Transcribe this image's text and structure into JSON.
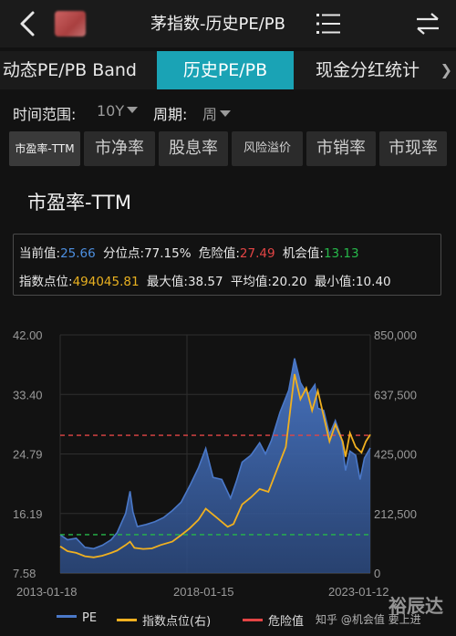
{
  "header": {
    "title": "茅指数-历史PE/PB"
  },
  "tabs": [
    {
      "label": "动态PE/PB Band",
      "active": false
    },
    {
      "label": "历史PE/PB",
      "active": true
    },
    {
      "label": "现金分红统计",
      "active": false
    }
  ],
  "filters": {
    "range_label": "时间范围:",
    "range_value": "10Y",
    "period_label": "周期:",
    "period_value": "周"
  },
  "metric_tabs": [
    {
      "label": "市盈率-TTM",
      "active": true
    },
    {
      "label": "市净率",
      "active": false
    },
    {
      "label": "股息率",
      "active": false
    },
    {
      "label": "风险溢价",
      "active": false
    },
    {
      "label": "市销率",
      "active": false
    },
    {
      "label": "市现率",
      "active": false
    }
  ],
  "chart_title": "市盈率-TTM",
  "stats": {
    "current_label": "当前值:",
    "current_value": "25.66",
    "percentile_label": "分位点:",
    "percentile_value": "77.15%",
    "danger_label": "危险值:",
    "danger_value": "27.49",
    "chance_label": "机会值:",
    "chance_value": "13.13",
    "index_label": "指数点位:",
    "index_value": "494045.81",
    "max_label": "最大值:",
    "max_value": "38.57",
    "avg_label": "平均值:",
    "avg_value": "20.20",
    "min_label": "最小值:",
    "min_value": "10.40"
  },
  "chart_data": {
    "type": "area",
    "title": "",
    "x_ticks": [
      "2013-01-18",
      "2018-01-15",
      "2023-01-12"
    ],
    "y_left_ticks": [
      "42.00",
      "33.40",
      "24.79",
      "16.19",
      "7.58"
    ],
    "y_right_ticks": [
      "850,000",
      "637,500",
      "425,000",
      "212,500",
      "0"
    ],
    "ylim_left": [
      7.58,
      42.0
    ],
    "ylim_right": [
      0,
      850000
    ],
    "x_range": [
      2013.05,
      2023.7
    ],
    "series": [
      {
        "name": "PE",
        "axis": "left",
        "color": "#4a78c8",
        "points": [
          [
            2013.05,
            13.1
          ],
          [
            2013.3,
            12.4
          ],
          [
            2013.6,
            12.6
          ],
          [
            2013.9,
            11.3
          ],
          [
            2014.2,
            11.1
          ],
          [
            2014.5,
            11.6
          ],
          [
            2014.8,
            12.4
          ],
          [
            2015.0,
            13.4
          ],
          [
            2015.3,
            16.2
          ],
          [
            2015.45,
            19.4
          ],
          [
            2015.55,
            16.4
          ],
          [
            2015.7,
            14.3
          ],
          [
            2016.0,
            14.6
          ],
          [
            2016.3,
            15.0
          ],
          [
            2016.6,
            15.6
          ],
          [
            2016.9,
            16.6
          ],
          [
            2017.2,
            17.8
          ],
          [
            2017.5,
            20.2
          ],
          [
            2017.8,
            22.8
          ],
          [
            2018.05,
            25.6
          ],
          [
            2018.3,
            21.4
          ],
          [
            2018.6,
            21.1
          ],
          [
            2018.9,
            18.4
          ],
          [
            2019.1,
            20.8
          ],
          [
            2019.3,
            23.6
          ],
          [
            2019.6,
            24.6
          ],
          [
            2019.9,
            26.4
          ],
          [
            2020.1,
            24.8
          ],
          [
            2020.3,
            26.7
          ],
          [
            2020.6,
            30.8
          ],
          [
            2020.9,
            34.0
          ],
          [
            2021.1,
            38.6
          ],
          [
            2021.3,
            35.1
          ],
          [
            2021.55,
            33.3
          ],
          [
            2021.8,
            34.8
          ],
          [
            2021.9,
            31.4
          ],
          [
            2022.1,
            31.1
          ],
          [
            2022.3,
            27.6
          ],
          [
            2022.5,
            29.6
          ],
          [
            2022.7,
            27.2
          ],
          [
            2022.85,
            22.4
          ],
          [
            2023.0,
            25.2
          ],
          [
            2023.2,
            24.6
          ],
          [
            2023.35,
            21.1
          ],
          [
            2023.5,
            24.2
          ],
          [
            2023.7,
            25.66
          ]
        ]
      },
      {
        "name": "指数点位(右)",
        "axis": "right",
        "color": "#f0b020",
        "points": [
          [
            2013.05,
            95000
          ],
          [
            2013.3,
            78000
          ],
          [
            2013.6,
            72000
          ],
          [
            2013.9,
            60000
          ],
          [
            2014.2,
            56000
          ],
          [
            2014.5,
            62000
          ],
          [
            2014.8,
            72000
          ],
          [
            2015.0,
            80000
          ],
          [
            2015.3,
            100000
          ],
          [
            2015.45,
            112000
          ],
          [
            2015.6,
            90000
          ],
          [
            2015.9,
            86000
          ],
          [
            2016.2,
            88000
          ],
          [
            2016.5,
            100000
          ],
          [
            2016.9,
            112000
          ],
          [
            2017.2,
            135000
          ],
          [
            2017.5,
            160000
          ],
          [
            2017.8,
            190000
          ],
          [
            2018.05,
            230000
          ],
          [
            2018.4,
            200000
          ],
          [
            2018.8,
            165000
          ],
          [
            2019.0,
            175000
          ],
          [
            2019.3,
            245000
          ],
          [
            2019.6,
            270000
          ],
          [
            2019.9,
            300000
          ],
          [
            2020.2,
            290000
          ],
          [
            2020.5,
            370000
          ],
          [
            2020.8,
            450000
          ],
          [
            2021.1,
            710000
          ],
          [
            2021.3,
            620000
          ],
          [
            2021.5,
            660000
          ],
          [
            2021.7,
            580000
          ],
          [
            2021.9,
            650000
          ],
          [
            2022.1,
            560000
          ],
          [
            2022.3,
            470000
          ],
          [
            2022.5,
            530000
          ],
          [
            2022.75,
            470000
          ],
          [
            2022.85,
            415000
          ],
          [
            2023.0,
            500000
          ],
          [
            2023.2,
            450000
          ],
          [
            2023.4,
            430000
          ],
          [
            2023.55,
            470000
          ],
          [
            2023.7,
            494046
          ]
        ]
      }
    ],
    "reference_lines": [
      {
        "name": "危险值",
        "value": 27.49,
        "color": "#e34545"
      },
      {
        "name": "机会值",
        "value": 13.13,
        "color": "#27b84a"
      }
    ]
  },
  "legend": [
    {
      "label": "PE",
      "color": "#4a78c8"
    },
    {
      "label": "指数点位(右)",
      "color": "#f0b020"
    },
    {
      "label": "危险值",
      "color": "#e34545"
    }
  ],
  "watermark": {
    "brand": "裕辰达",
    "text": "知乎 @机会值 要上进"
  }
}
